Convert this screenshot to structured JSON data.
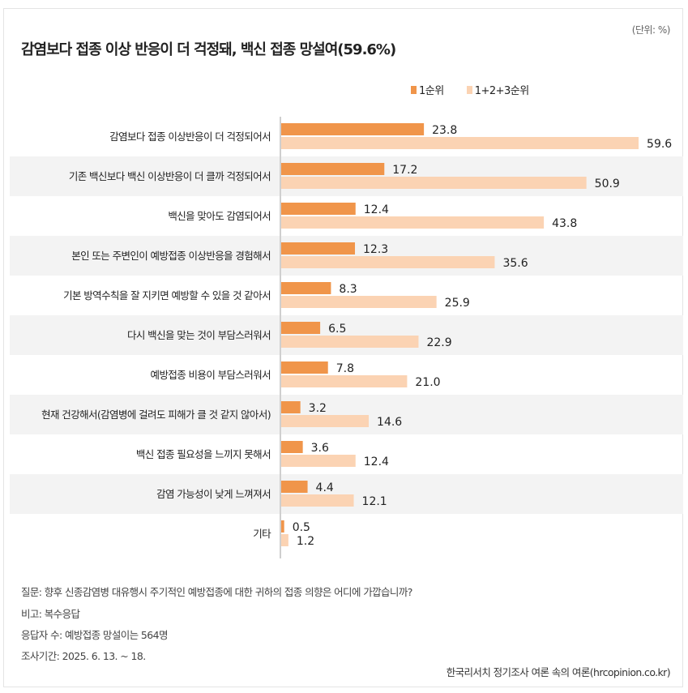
{
  "unit_label": "(단위: %)",
  "colors": {
    "series1": "#f0954a",
    "series2": "#fbd3b3",
    "stripe": "#f3f3f3",
    "axis": "#cfcfcf"
  },
  "chart_data": {
    "type": "bar",
    "orientation": "horizontal",
    "title": "감염보다 접종 이상 반응이 더 걱정돼, 백신 접종 망설여(59.6%)",
    "xlabel": "",
    "ylabel": "",
    "unit": "%",
    "xlim": [
      0,
      60
    ],
    "grid": false,
    "legend_position": "top-right",
    "categories": [
      "감염보다 접종 이상반응이 더 걱정되어서",
      "기존 백신보다 백신 이상반응이 더 클까 걱정되어서",
      "백신을 맞아도 감염되어서",
      "본인 또는 주변인이 예방접종 이상반응을 경험해서",
      "기본 방역수칙을 잘 지키면 예방할 수 있을 것 같아서",
      "다시 백신을 맞는 것이 부담스러워서",
      "예방접종 비용이 부담스러워서",
      "현재 건강해서(감염병에 걸려도 피해가 클 것 같지 않아서)",
      "백신 접종 필요성을 느끼지 못해서",
      "감염 가능성이 낮게 느껴져서",
      "기타"
    ],
    "series": [
      {
        "name": "1순위",
        "values": [
          23.8,
          17.2,
          12.4,
          12.3,
          8.3,
          6.5,
          7.8,
          3.2,
          3.6,
          4.4,
          0.5
        ],
        "labels": [
          "23.8",
          "17.2",
          "12.4",
          "12.3",
          "8.3",
          "6.5",
          "7.8",
          "3.2",
          "3.6",
          "4.4",
          "0.5"
        ]
      },
      {
        "name": "1+2+3순위",
        "values": [
          59.6,
          50.9,
          43.8,
          35.6,
          25.9,
          22.9,
          21.0,
          14.6,
          12.4,
          12.1,
          1.2
        ],
        "labels": [
          "59.6",
          "50.9",
          "43.8",
          "35.6",
          "25.9",
          "22.9",
          "21.0",
          "14.6",
          "12.4",
          "12.1",
          "1.2"
        ]
      }
    ]
  },
  "footer": {
    "question": "질문: 향후 신종감염병 대유행시 주기적인 예방접종에 대한 귀하의 접종 의향은 어디에 가깝습니까?",
    "note": "비고: 복수응답",
    "respondents": "응답자 수: 예방접종 망설이는 564명",
    "period": "조사기간: 2025. 6. 13. ~ 18.",
    "source": "한국리서치 정기조사 여론 속의 여론(hrcopinion.co.kr)"
  }
}
